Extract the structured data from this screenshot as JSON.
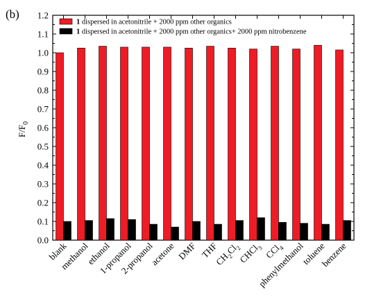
{
  "panel_label": "(b)",
  "chart_data": {
    "type": "bar",
    "ylabel": "F/F",
    "ylabel_sub": "0",
    "ylim": [
      0.0,
      1.2
    ],
    "yticks": [
      "0.0",
      "0.1",
      "0.2",
      "0.3",
      "0.4",
      "0.5",
      "0.6",
      "0.7",
      "0.8",
      "0.9",
      "1.0",
      "1.1",
      "1.2"
    ],
    "grid": false,
    "legend_position": "top",
    "categories": [
      {
        "base": "blank"
      },
      {
        "base": "methanol"
      },
      {
        "base": "ethanol"
      },
      {
        "base": "1-propanol"
      },
      {
        "base": "2-propanol"
      },
      {
        "base": "acetone"
      },
      {
        "base": "DMF"
      },
      {
        "base": "THF"
      },
      {
        "base": "CH",
        "sub1": "2",
        "mid": "Cl",
        "sub2": "2"
      },
      {
        "base": "CHCl",
        "sub1": "3"
      },
      {
        "base": "CCl",
        "sub1": "4"
      },
      {
        "base": "phenylmethanol"
      },
      {
        "base": "toluene"
      },
      {
        "base": "benzene"
      }
    ],
    "series": [
      {
        "name_bold": "1",
        "name": " dispersed in acetonitrile + 2000 ppm other organics",
        "color": "#ee1c25",
        "values": [
          1.0,
          1.025,
          1.035,
          1.03,
          1.03,
          1.03,
          1.025,
          1.035,
          1.025,
          1.02,
          1.035,
          1.02,
          1.04,
          1.015
        ]
      },
      {
        "name_bold": "1",
        "name": " dispersed in acetonitrile + 2000 ppm other organics+ 2000 ppm nitrobenzene",
        "color": "#000000",
        "values": [
          0.1,
          0.105,
          0.115,
          0.11,
          0.085,
          0.07,
          0.1,
          0.085,
          0.105,
          0.12,
          0.095,
          0.09,
          0.085,
          0.105
        ]
      }
    ]
  }
}
